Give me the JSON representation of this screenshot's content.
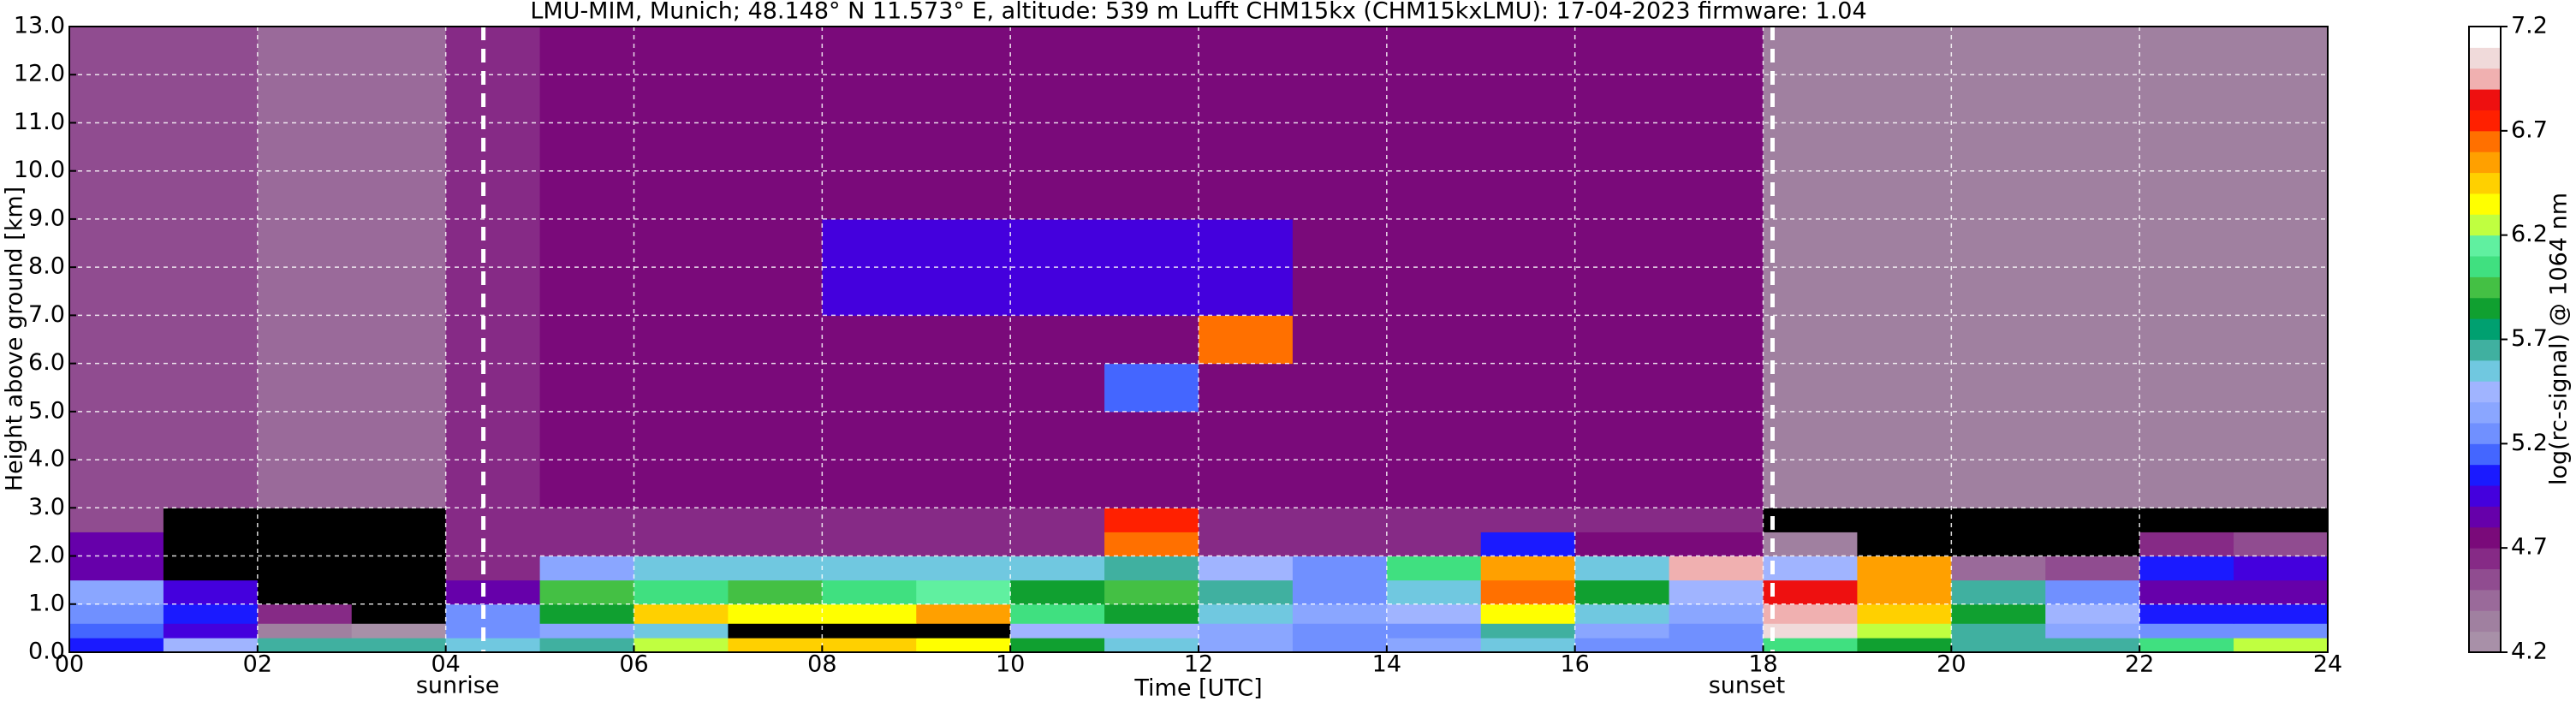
{
  "chart_data": {
    "type": "heatmap",
    "title": "LMU-MIM, Munich; 48.148° N 11.573° E, altitude: 539 m    Lufft CHM15kx (CHM15kxLMU): 17-04-2023    firmware: 1.04",
    "xlabel": "Time [UTC]",
    "ylabel": "Height above ground [km]",
    "colorbar_label": "log(rc-signal) @ 1064 nm",
    "xlim": [
      0,
      24
    ],
    "ylim": [
      0,
      13
    ],
    "xticks": [
      {
        "value": 0,
        "label": "00"
      },
      {
        "value": 2,
        "label": "02"
      },
      {
        "value": 4,
        "label": "04"
      },
      {
        "value": 6,
        "label": "06"
      },
      {
        "value": 8,
        "label": "08"
      },
      {
        "value": 10,
        "label": "10"
      },
      {
        "value": 12,
        "label": "12"
      },
      {
        "value": 14,
        "label": "14"
      },
      {
        "value": 16,
        "label": "16"
      },
      {
        "value": 18,
        "label": "18"
      },
      {
        "value": 20,
        "label": "20"
      },
      {
        "value": 22,
        "label": "22"
      },
      {
        "value": 24,
        "label": "24"
      }
    ],
    "yticks": [
      {
        "value": 0,
        "label": "0.0"
      },
      {
        "value": 1,
        "label": "1.0"
      },
      {
        "value": 2,
        "label": "2.0"
      },
      {
        "value": 3,
        "label": "3.0"
      },
      {
        "value": 4,
        "label": "4.0"
      },
      {
        "value": 5,
        "label": "5.0"
      },
      {
        "value": 6,
        "label": "6.0"
      },
      {
        "value": 7,
        "label": "7.0"
      },
      {
        "value": 8,
        "label": "8.0"
      },
      {
        "value": 9,
        "label": "9.0"
      },
      {
        "value": 10,
        "label": "10.0"
      },
      {
        "value": 11,
        "label": "11.0"
      },
      {
        "value": 12,
        "label": "12.0"
      },
      {
        "value": 13,
        "label": "13.0"
      }
    ],
    "grid": true,
    "clim": [
      4.2,
      7.2
    ],
    "cticks": [
      4.2,
      4.7,
      5.2,
      5.7,
      6.2,
      6.7,
      7.2
    ],
    "under_color": "#000000",
    "colors": [
      "#a890a8",
      "#a080a0",
      "#9a6a9a",
      "#904c90",
      "#862a86",
      "#7a0a7a",
      "#6600aa",
      "#4400dd",
      "#1a1aff",
      "#4466ff",
      "#7090ff",
      "#8aa6ff",
      "#a0b4ff",
      "#70c8e0",
      "#40b0a0",
      "#00a070",
      "#10a030",
      "#44c044",
      "#40e080",
      "#60f0a0",
      "#c0ff40",
      "#ffff00",
      "#ffd000",
      "#ffa000",
      "#ff7000",
      "#ff2000",
      "#ee1010",
      "#f0b0b0",
      "#f0dada",
      "#ffffff"
    ],
    "x_edges": [
      0,
      1,
      2,
      3,
      4,
      5,
      6,
      7,
      8,
      9,
      10,
      11,
      12,
      13,
      14,
      15,
      16,
      17,
      18,
      19,
      20,
      21,
      22,
      23,
      24
    ],
    "y_edges": [
      0,
      0.3,
      0.6,
      1.0,
      1.5,
      2.0,
      2.5,
      3,
      4,
      5,
      6,
      7,
      9,
      13
    ],
    "z": [
      [
        5.0,
        5.4,
        5.6,
        5.6,
        5.5,
        5.6,
        6.2,
        6.4,
        6.4,
        6.3,
        5.8,
        5.5,
        5.3,
        5.2,
        5.3,
        5.5,
        5.2,
        5.2,
        6.0,
        5.8,
        5.6,
        5.6,
        6.0,
        6.2
      ],
      [
        5.1,
        4.9,
        4.3,
        4.2,
        5.2,
        5.3,
        5.5,
        4.0,
        4.0,
        4.0,
        5.4,
        5.4,
        5.3,
        5.2,
        5.2,
        5.6,
        5.3,
        5.2,
        7.0,
        6.2,
        5.6,
        5.3,
        5.2,
        5.2
      ],
      [
        5.2,
        5.0,
        4.6,
        4.1,
        5.2,
        5.8,
        6.4,
        6.3,
        6.3,
        6.5,
        6.0,
        5.8,
        5.5,
        5.3,
        5.4,
        6.3,
        5.5,
        5.3,
        6.9,
        6.4,
        5.8,
        5.4,
        5.0,
        5.0
      ],
      [
        5.3,
        4.9,
        4.0,
        4.0,
        4.8,
        5.9,
        6.0,
        5.9,
        6.0,
        6.1,
        5.8,
        5.9,
        5.6,
        5.2,
        5.5,
        6.6,
        5.8,
        5.4,
        6.8,
        6.5,
        5.6,
        5.2,
        4.8,
        4.8
      ],
      [
        4.8,
        4.0,
        4.0,
        4.0,
        4.6,
        5.3,
        5.5,
        5.5,
        5.5,
        5.5,
        5.5,
        5.6,
        5.4,
        5.2,
        6.0,
        6.5,
        5.5,
        6.9,
        5.4,
        6.5,
        4.4,
        4.5,
        5.0,
        4.9
      ],
      [
        4.8,
        4.0,
        4.0,
        4.0,
        4.6,
        4.6,
        4.6,
        4.6,
        4.6,
        4.6,
        4.6,
        6.6,
        4.6,
        4.6,
        4.6,
        5.0,
        4.7,
        4.7,
        4.3,
        4.0,
        4.0,
        4.0,
        4.6,
        4.5
      ],
      [
        4.5,
        4.0,
        4.0,
        4.0,
        4.6,
        4.6,
        4.6,
        4.6,
        4.6,
        4.6,
        4.6,
        6.7,
        4.6,
        4.6,
        4.6,
        4.6,
        4.6,
        4.6,
        4.0,
        4.0,
        4.0,
        4.0,
        4.0,
        4.0
      ],
      [
        4.5,
        4.5,
        4.4,
        4.4,
        4.6,
        4.7,
        4.7,
        4.7,
        4.7,
        4.7,
        4.7,
        4.7,
        4.7,
        4.7,
        4.7,
        4.7,
        4.7,
        4.7,
        4.3,
        4.3,
        4.3,
        4.3,
        4.3,
        4.3
      ],
      [
        4.5,
        4.5,
        4.4,
        4.4,
        4.6,
        4.7,
        4.7,
        4.7,
        4.7,
        4.7,
        4.7,
        4.7,
        4.7,
        4.7,
        4.7,
        4.7,
        4.7,
        4.7,
        4.3,
        4.3,
        4.3,
        4.3,
        4.3,
        4.3
      ],
      [
        4.5,
        4.5,
        4.4,
        4.4,
        4.6,
        4.7,
        4.7,
        4.7,
        4.7,
        4.7,
        4.7,
        5.1,
        4.7,
        4.7,
        4.7,
        4.7,
        4.7,
        4.7,
        4.3,
        4.3,
        4.3,
        4.3,
        4.3,
        4.3
      ],
      [
        4.5,
        4.5,
        4.4,
        4.4,
        4.6,
        4.7,
        4.7,
        4.7,
        4.7,
        4.7,
        4.7,
        4.7,
        6.6,
        4.7,
        4.7,
        4.7,
        4.7,
        4.7,
        4.3,
        4.3,
        4.3,
        4.3,
        4.3,
        4.3
      ],
      [
        4.5,
        4.5,
        4.4,
        4.4,
        4.6,
        4.7,
        4.7,
        4.7,
        4.9,
        4.9,
        4.9,
        4.9,
        4.9,
        4.7,
        4.7,
        4.7,
        4.7,
        4.7,
        4.3,
        4.3,
        4.3,
        4.3,
        4.3,
        4.3
      ],
      [
        4.5,
        4.5,
        4.4,
        4.4,
        4.6,
        4.7,
        4.7,
        4.7,
        4.7,
        4.7,
        4.7,
        4.7,
        4.7,
        4.7,
        4.7,
        4.7,
        4.7,
        4.7,
        4.3,
        4.3,
        4.3,
        4.3,
        4.3,
        4.3
      ]
    ],
    "annotations": [
      {
        "text": "sunrise",
        "x": 4.4
      },
      {
        "text": "sunset",
        "x": 18.1
      }
    ]
  }
}
